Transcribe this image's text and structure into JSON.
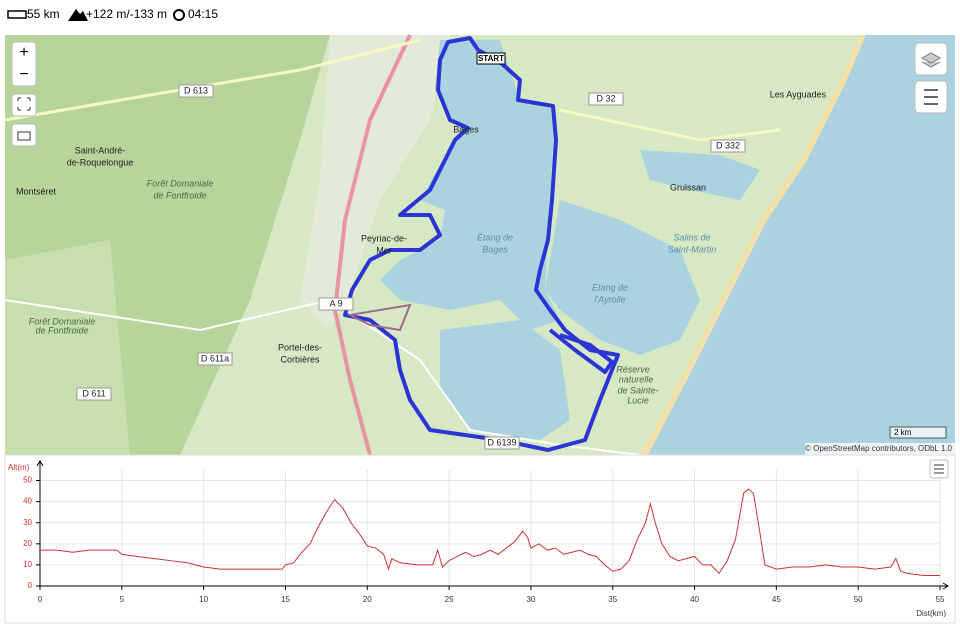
{
  "header": {
    "distance": "55 km",
    "elevation": "+122 m/-133 m",
    "duration": "04:15"
  },
  "map": {
    "labels": [
      "D 613",
      "Saint-André-",
      "de-Roquelongue",
      "Forêt Domaniale",
      "de Fontfroide",
      "Montséret",
      "Bages",
      "Peyriac-de-",
      "Mer",
      "Étang de",
      "Bages",
      "Étang de",
      "l'Ayrolle",
      "D 32",
      "Les Ayguades",
      "D 332",
      "Gruissan",
      "Salins de",
      "Saint-Martin",
      "Forêt Domaniale",
      "de Fontfroide",
      "D 611a",
      "Portel-des-",
      "Corbières",
      "D 611",
      "Réserve",
      "naturelle",
      "de Sainte-",
      "Lucie",
      "D 6139",
      "A 9"
    ],
    "start": "START",
    "scale": "2 km",
    "attribution": "© OpenStreetMap contributors, ODbL 1.0",
    "controls": {
      "zoom_in": "+",
      "zoom_out": "−"
    }
  },
  "chart_data": {
    "type": "line",
    "x_label": "Dist(km)",
    "y_label": "Alt(m)",
    "color": "#cc3333",
    "x": [
      0,
      1,
      2,
      3,
      4.7,
      5,
      6,
      7,
      8,
      9,
      10,
      11,
      12,
      13,
      14,
      14.8,
      15,
      15.5,
      16,
      16.5,
      17,
      17.5,
      18,
      18.5,
      19,
      19.5,
      20,
      20.5,
      21,
      21.3,
      21.5,
      22,
      23,
      24,
      24.3,
      24.6,
      25,
      25.5,
      26,
      26.5,
      27,
      27.5,
      28,
      28.5,
      29,
      29.5,
      29.8,
      30,
      30.5,
      31,
      31.5,
      32,
      32.5,
      33,
      33.5,
      34,
      34.5,
      35,
      35.5,
      36,
      36.5,
      37,
      37.3,
      37.6,
      38,
      38.5,
      39,
      39.5,
      40,
      40.5,
      41,
      41.5,
      42,
      42.5,
      43,
      43.3,
      43.6,
      44,
      44.3,
      45,
      46,
      47,
      48,
      49,
      50,
      51,
      52,
      52.3,
      52.6,
      53,
      54,
      55
    ],
    "values": [
      17,
      17,
      16,
      17,
      17,
      15,
      14,
      13,
      12,
      11,
      9,
      8,
      8,
      8,
      8,
      8,
      10,
      11,
      16,
      20,
      28,
      35,
      41,
      37,
      30,
      25,
      19,
      18,
      15,
      8,
      13,
      11,
      10,
      10,
      17,
      9,
      12,
      14,
      16,
      14,
      15,
      17,
      15,
      18,
      21,
      26,
      23,
      18,
      20,
      17,
      18,
      15,
      16,
      17,
      15,
      14,
      10,
      7,
      8,
      12,
      22,
      30,
      39,
      30,
      20,
      14,
      12,
      13,
      14,
      10,
      10,
      6,
      12,
      22,
      44,
      46,
      44,
      25,
      10,
      8,
      9,
      9,
      10,
      9,
      9,
      8,
      9,
      13,
      7,
      6,
      5,
      5
    ],
    "xlim": [
      0,
      55
    ],
    "ylim": [
      0,
      55
    ],
    "xticks": [
      0,
      5,
      10,
      15,
      20,
      25,
      30,
      35,
      40,
      45,
      50,
      55
    ],
    "yticks": [
      0,
      10,
      20,
      30,
      40,
      50
    ],
    "grid": true
  }
}
